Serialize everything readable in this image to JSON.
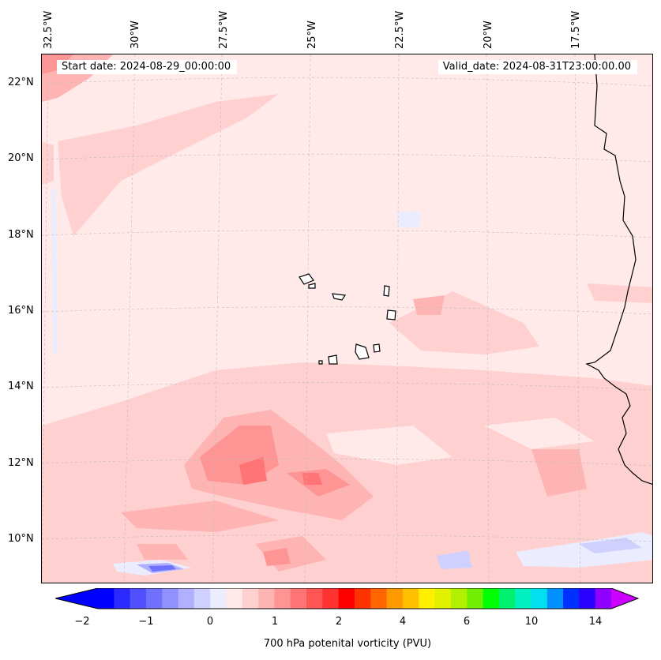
{
  "header": {
    "start_date": "Start date: 2024-08-29_00:00:00",
    "valid_date": "Valid_date: 2024-08-31T23:00:00.00"
  },
  "axes": {
    "lon_labels": [
      "32.5°W",
      "30°W",
      "27.5°W",
      "25°W",
      "22.5°W",
      "20°W",
      "17.5°W"
    ],
    "lat_labels": [
      "22°N",
      "20°N",
      "18°N",
      "16°N",
      "14°N",
      "12°N",
      "10°N"
    ]
  },
  "colorbar": {
    "label": "700 hPa potenital vorticity (PVU)",
    "ticks": [
      "−2",
      "−1",
      "0",
      "1",
      "2",
      "4",
      "6",
      "10",
      "14"
    ],
    "colors": [
      "#0000ff",
      "#2a2aff",
      "#5050ff",
      "#7070ff",
      "#9090ff",
      "#b0b0ff",
      "#d0d0ff",
      "#ececff",
      "#ffe9e9",
      "#ffd0d0",
      "#ffb4b4",
      "#ff9494",
      "#ff7474",
      "#ff5555",
      "#ff3232",
      "#ff0000",
      "#ff3300",
      "#ff6600",
      "#ff9900",
      "#ffc000",
      "#fff000",
      "#e0f000",
      "#b0f000",
      "#70f000",
      "#00ff00",
      "#00f070",
      "#00f0c0",
      "#00e0f0",
      "#0090ff",
      "#0030ff",
      "#2a00ff",
      "#9000ff"
    ],
    "extend_low_color": "#0000ff",
    "extend_high_color": "#cc00ff"
  },
  "map": {
    "background_color": "#ffe9e9",
    "coastline_color": "#000000"
  }
}
